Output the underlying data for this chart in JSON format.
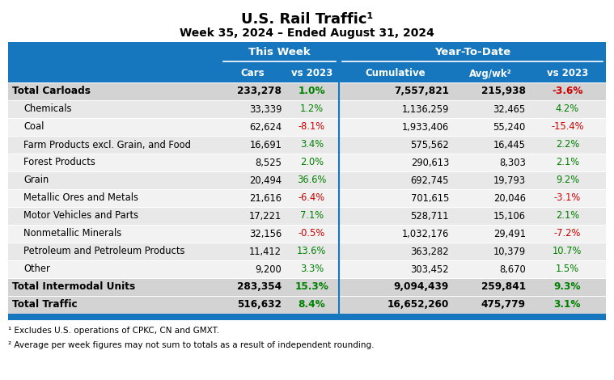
{
  "title": "U.S. Rail Traffic",
  "title_sup": "¹",
  "subtitle": "Week 35, 2024 – Ended August 31, 2024",
  "header_group1": "This Week",
  "header_group2": "Year-To-Date",
  "col_headers": [
    "Cars",
    "vs 2023",
    "Cumulative",
    "Avg/wk²",
    "vs 2023"
  ],
  "rows": [
    {
      "label": "Total Carloads",
      "bold": true,
      "indent": false,
      "cars": "233,278",
      "vs23_tw": "1.0%",
      "vs23_tw_color": "green",
      "cumul": "7,557,821",
      "avg": "215,938",
      "vs23_ytd": "-3.6%",
      "vs23_ytd_color": "red"
    },
    {
      "label": "Chemicals",
      "bold": false,
      "indent": true,
      "cars": "33,339",
      "vs23_tw": "1.2%",
      "vs23_tw_color": "green",
      "cumul": "1,136,259",
      "avg": "32,465",
      "vs23_ytd": "4.2%",
      "vs23_ytd_color": "green"
    },
    {
      "label": "Coal",
      "bold": false,
      "indent": true,
      "cars": "62,624",
      "vs23_tw": "-8.1%",
      "vs23_tw_color": "red",
      "cumul": "1,933,406",
      "avg": "55,240",
      "vs23_ytd": "-15.4%",
      "vs23_ytd_color": "red"
    },
    {
      "label": "Farm Products excl. Grain, and Food",
      "bold": false,
      "indent": true,
      "cars": "16,691",
      "vs23_tw": "3.4%",
      "vs23_tw_color": "green",
      "cumul": "575,562",
      "avg": "16,445",
      "vs23_ytd": "2.2%",
      "vs23_ytd_color": "green"
    },
    {
      "label": "Forest Products",
      "bold": false,
      "indent": true,
      "cars": "8,525",
      "vs23_tw": "2.0%",
      "vs23_tw_color": "green",
      "cumul": "290,613",
      "avg": "8,303",
      "vs23_ytd": "2.1%",
      "vs23_ytd_color": "green"
    },
    {
      "label": "Grain",
      "bold": false,
      "indent": true,
      "cars": "20,494",
      "vs23_tw": "36.6%",
      "vs23_tw_color": "green",
      "cumul": "692,745",
      "avg": "19,793",
      "vs23_ytd": "9.2%",
      "vs23_ytd_color": "green"
    },
    {
      "label": "Metallic Ores and Metals",
      "bold": false,
      "indent": true,
      "cars": "21,616",
      "vs23_tw": "-6.4%",
      "vs23_tw_color": "red",
      "cumul": "701,615",
      "avg": "20,046",
      "vs23_ytd": "-3.1%",
      "vs23_ytd_color": "red"
    },
    {
      "label": "Motor Vehicles and Parts",
      "bold": false,
      "indent": true,
      "cars": "17,221",
      "vs23_tw": "7.1%",
      "vs23_tw_color": "green",
      "cumul": "528,711",
      "avg": "15,106",
      "vs23_ytd": "2.1%",
      "vs23_ytd_color": "green"
    },
    {
      "label": "Nonmetallic Minerals",
      "bold": false,
      "indent": true,
      "cars": "32,156",
      "vs23_tw": "-0.5%",
      "vs23_tw_color": "red",
      "cumul": "1,032,176",
      "avg": "29,491",
      "vs23_ytd": "-7.2%",
      "vs23_ytd_color": "red"
    },
    {
      "label": "Petroleum and Petroleum Products",
      "bold": false,
      "indent": true,
      "cars": "11,412",
      "vs23_tw": "13.6%",
      "vs23_tw_color": "green",
      "cumul": "363,282",
      "avg": "10,379",
      "vs23_ytd": "10.7%",
      "vs23_ytd_color": "green"
    },
    {
      "label": "Other",
      "bold": false,
      "indent": true,
      "cars": "9,200",
      "vs23_tw": "3.3%",
      "vs23_tw_color": "green",
      "cumul": "303,452",
      "avg": "8,670",
      "vs23_ytd": "1.5%",
      "vs23_ytd_color": "green"
    },
    {
      "label": "Total Intermodal Units",
      "bold": true,
      "indent": false,
      "cars": "283,354",
      "vs23_tw": "15.3%",
      "vs23_tw_color": "green",
      "cumul": "9,094,439",
      "avg": "259,841",
      "vs23_ytd": "9.3%",
      "vs23_ytd_color": "green"
    },
    {
      "label": "Total Traffic",
      "bold": true,
      "indent": false,
      "cars": "516,632",
      "vs23_tw": "8.4%",
      "vs23_tw_color": "green",
      "cumul": "16,652,260",
      "avg": "475,779",
      "vs23_ytd": "3.1%",
      "vs23_ytd_color": "green"
    }
  ],
  "footnote1": "¹ Excludes U.S. operations of CPKC, CN and GMXT.",
  "footnote2": "² Average per week figures may not sum to totals as a result of independent rounding.",
  "header_bg": "#1777be",
  "green_color": "#008000",
  "red_color": "#cc0000",
  "bold_row_bg": "#d3d3d3",
  "odd_bg": "#e8e8e8",
  "even_bg": "#f2f2f2"
}
